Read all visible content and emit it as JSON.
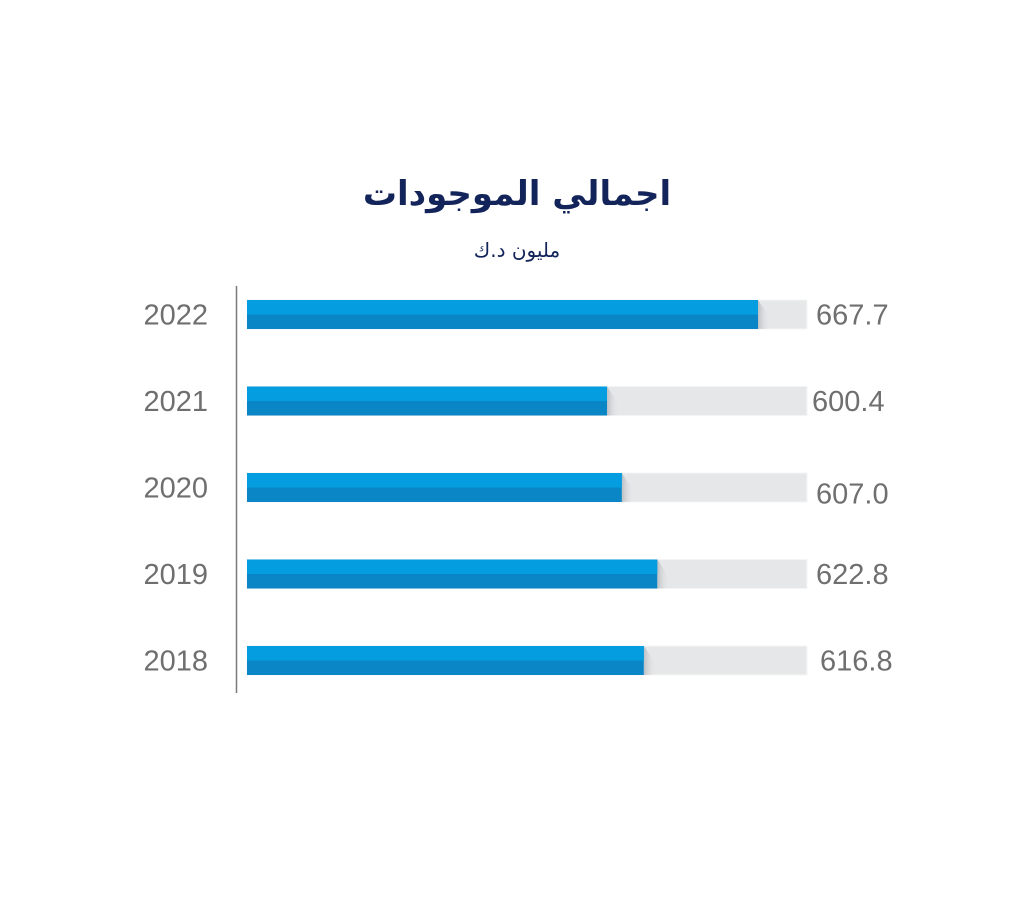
{
  "chart_data": {
    "type": "bar",
    "orientation": "horizontal",
    "title": "اجمالي الموجودات",
    "subtitle": "مليون د.ك",
    "categories": [
      "2022",
      "2021",
      "2020",
      "2019",
      "2018"
    ],
    "values": [
      667.7,
      600.4,
      607.0,
      622.8,
      616.8
    ],
    "value_labels": [
      "667.7",
      "600.4",
      "607.0",
      "622.8",
      "616.8"
    ],
    "grid": false,
    "legend": "none"
  },
  "colors": {
    "bar_top": "#049de0",
    "bar_bottom": "#0a86c6",
    "track": "#e6e7e8",
    "axis": "#7a7a7a",
    "title": "#13245a",
    "text": "#6f6f6f"
  }
}
